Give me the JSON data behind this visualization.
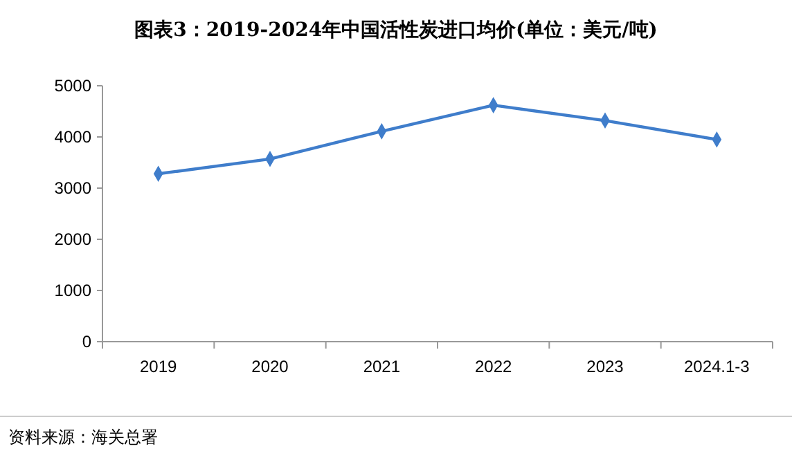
{
  "chart_data": {
    "type": "line",
    "title": "图表3：2019-2024年中国活性炭进口均价(单位：美元/吨)",
    "categories": [
      "2019",
      "2020",
      "2021",
      "2022",
      "2023",
      "2024.1-3"
    ],
    "series": [
      {
        "color": "#3f7dcb",
        "values": [
          3280,
          3570,
          4110,
          4620,
          4320,
          3950
        ]
      }
    ],
    "ylim": [
      0,
      5000
    ],
    "yticks": [
      0,
      1000,
      2000,
      3000,
      4000,
      5000
    ],
    "marker": "diamond",
    "line_style": "solid",
    "annotations": [
      "资料来源：海关总署"
    ]
  }
}
